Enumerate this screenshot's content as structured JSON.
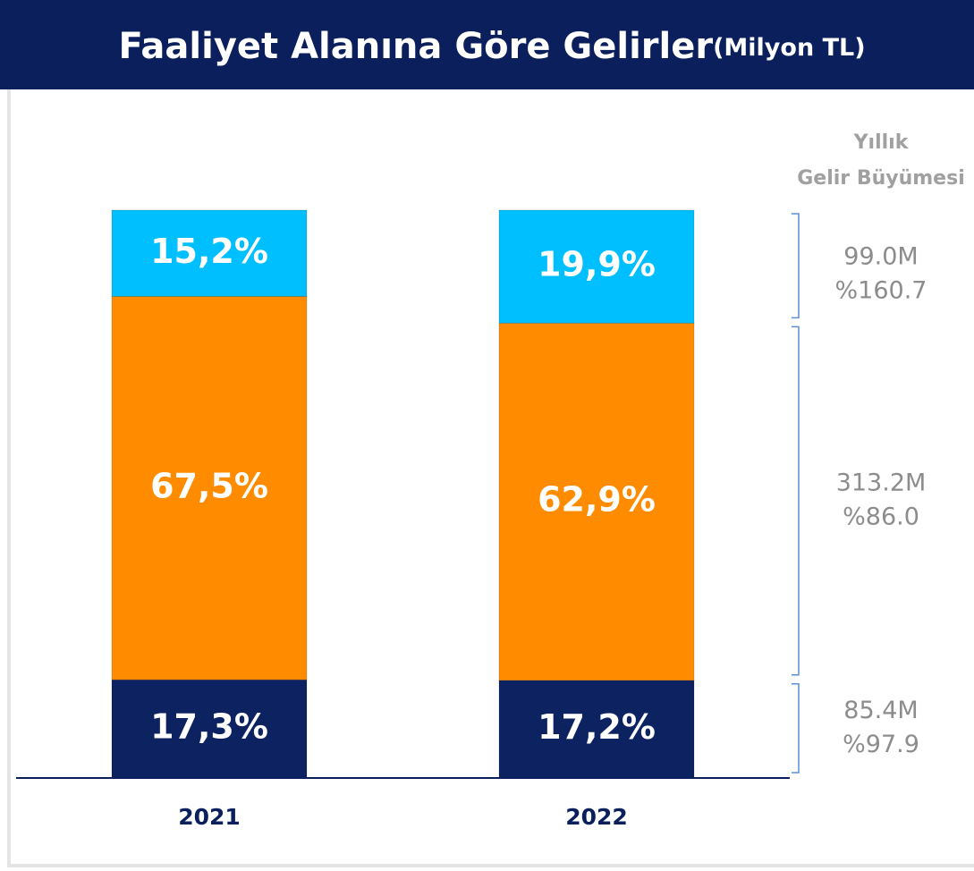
{
  "chart_data": {
    "type": "stacked_bar",
    "title": "Faaliyet Alanına Göre Gelirler",
    "subtitle": "(Milyon TL)",
    "categories": [
      "2021",
      "2022"
    ],
    "ylim": [
      0,
      100
    ],
    "side_header": [
      "Yıllık",
      "Gelir Büyümesi"
    ],
    "series": [
      {
        "color": "#0d2260",
        "values": [
          17.3,
          17.2
        ],
        "value_labels": [
          "17,3%",
          "17,2%"
        ],
        "total": "85.4M",
        "growth": "%97.9"
      },
      {
        "color": "#ff8c00",
        "values": [
          67.5,
          62.9
        ],
        "value_labels": [
          "67,5%",
          "62,9%"
        ],
        "total": "313.2M",
        "growth": "%86.0"
      },
      {
        "color": "#00bfff",
        "values": [
          15.2,
          19.9
        ],
        "value_labels": [
          "15,2%",
          "19,9%"
        ],
        "total": "99.0M",
        "growth": "%160.7"
      }
    ]
  }
}
